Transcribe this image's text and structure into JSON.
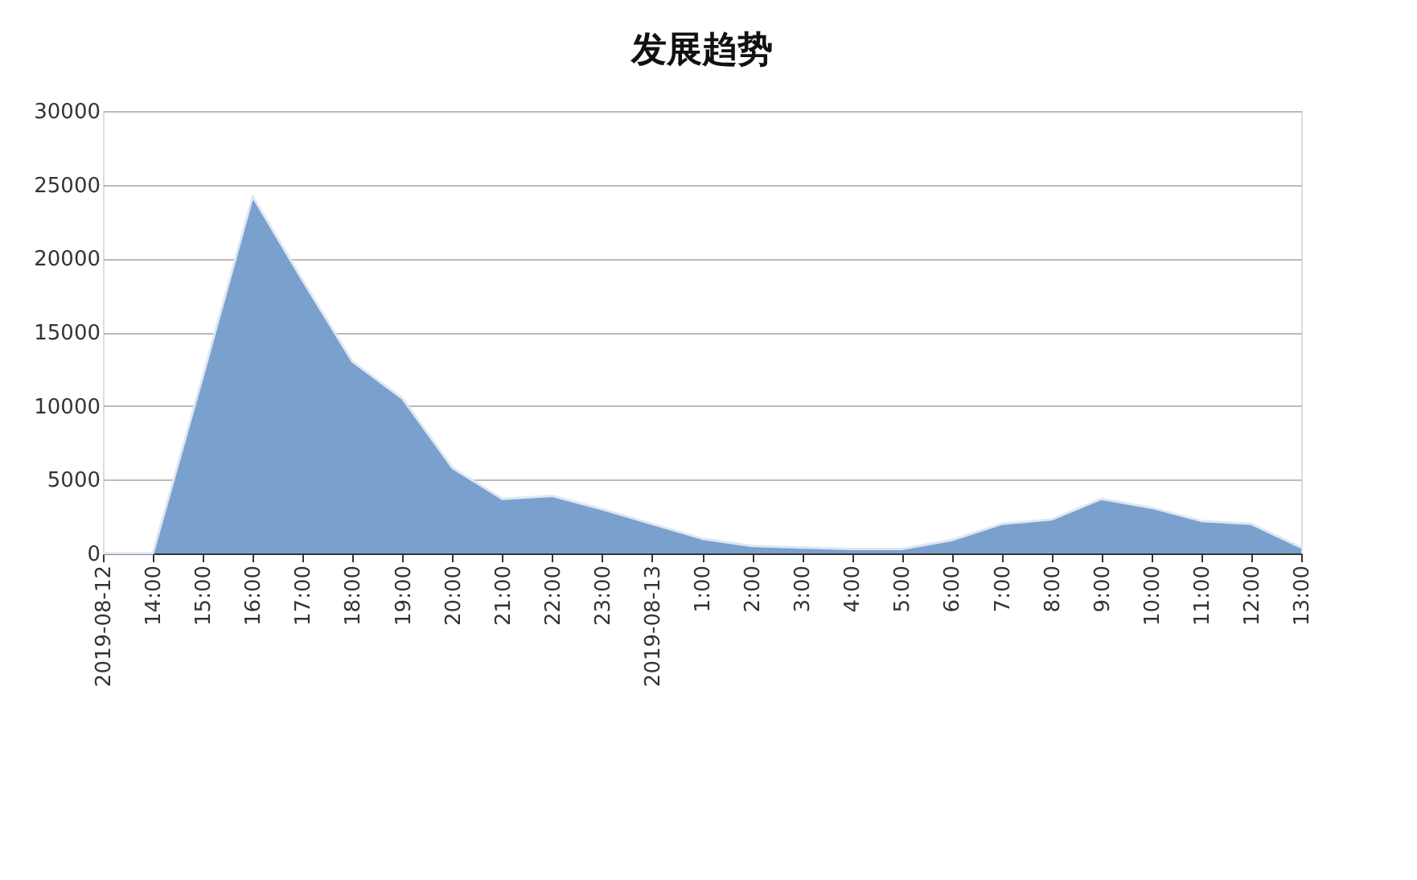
{
  "chart_data": {
    "type": "area",
    "title": "发展趋势",
    "categories": [
      "2019-08-12",
      "14:00",
      "15:00",
      "16:00",
      "17:00",
      "18:00",
      "19:00",
      "20:00",
      "21:00",
      "22:00",
      "23:00",
      "2019-08-13",
      "1:00",
      "2:00",
      "3:00",
      "4:00",
      "5:00",
      "6:00",
      "7:00",
      "8:00",
      "9:00",
      "10:00",
      "11:00",
      "12:00",
      "13:00"
    ],
    "series": [
      {
        "color": "#7aa0cd",
        "values": [
          0,
          0,
          12000,
          24200,
          18500,
          13000,
          10500,
          5800,
          3700,
          3900,
          3000,
          2000,
          1000,
          500,
          400,
          300,
          300,
          900,
          2000,
          2300,
          3700,
          3100,
          2200,
          2000,
          400
        ]
      }
    ],
    "ylim": [
      0,
      30000
    ],
    "yticks": [
      0,
      5000,
      10000,
      15000,
      20000,
      25000,
      30000
    ],
    "grid": "y"
  }
}
